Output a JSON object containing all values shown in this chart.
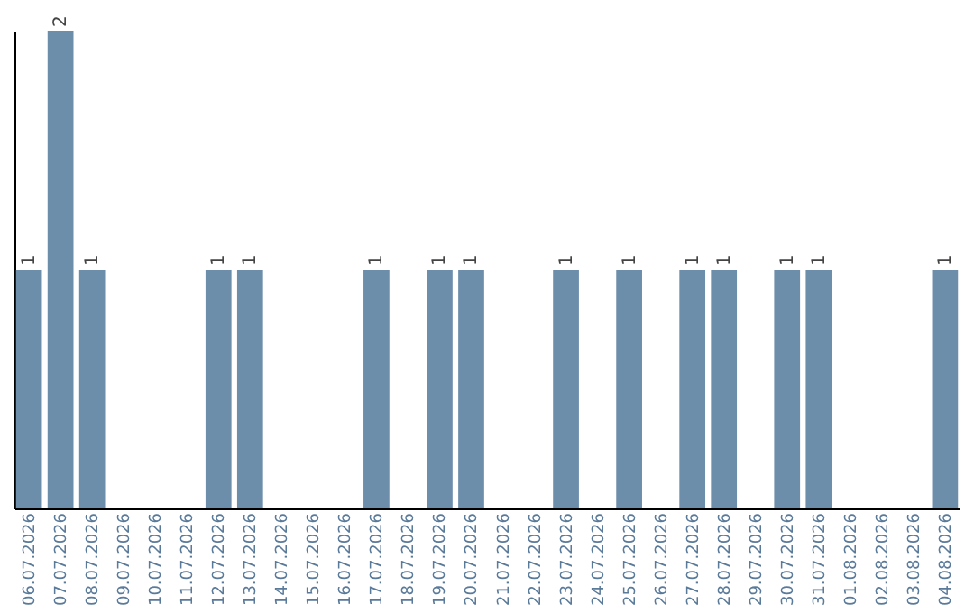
{
  "chart_data": {
    "type": "bar",
    "categories": [
      "06.07.2026",
      "07.07.2026",
      "08.07.2026",
      "09.07.2026",
      "10.07.2026",
      "11.07.2026",
      "12.07.2026",
      "13.07.2026",
      "14.07.2026",
      "15.07.2026",
      "16.07.2026",
      "17.07.2026",
      "18.07.2026",
      "19.07.2026",
      "20.07.2026",
      "21.07.2026",
      "22.07.2026",
      "23.07.2026",
      "24.07.2026",
      "25.07.2026",
      "26.07.2026",
      "27.07.2026",
      "28.07.2026",
      "29.07.2026",
      "30.07.2026",
      "31.07.2026",
      "01.08.2026",
      "02.08.2026",
      "03.08.2026",
      "04.08.2026"
    ],
    "values": [
      1,
      2,
      1,
      0,
      0,
      0,
      1,
      1,
      0,
      0,
      0,
      1,
      0,
      1,
      1,
      0,
      0,
      1,
      0,
      1,
      0,
      1,
      1,
      0,
      1,
      1,
      0,
      0,
      0,
      1
    ],
    "value_labels": [
      "1",
      "2",
      "1",
      null,
      null,
      null,
      "1",
      "1",
      null,
      null,
      null,
      "1",
      null,
      "1",
      "1",
      null,
      null,
      "1",
      null,
      "1",
      null,
      "1",
      "1",
      null,
      "1",
      "1",
      null,
      null,
      null,
      "1"
    ],
    "color": "#6d8eab",
    "tick_labels": "x"
  }
}
